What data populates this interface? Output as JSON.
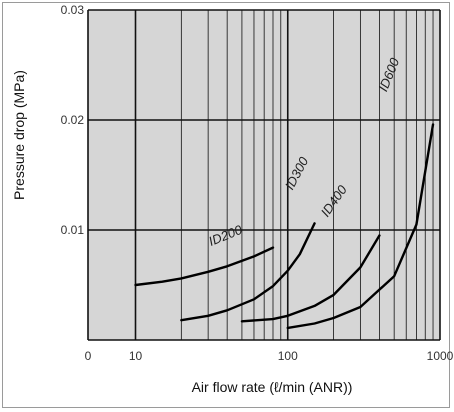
{
  "chart_data": {
    "type": "line",
    "title": "",
    "xlabel": "Air flow rate (ℓ/min (ANR))",
    "ylabel": "Pressure drop (MPa)",
    "x_scale": "log",
    "xlim": [
      10,
      1000
    ],
    "ylim": [
      0,
      0.03
    ],
    "x_ticks": [
      {
        "value": 10,
        "label": "10"
      },
      {
        "value": 100,
        "label": "100"
      },
      {
        "value": 1000,
        "label": "1000"
      }
    ],
    "x_origin_label": "0",
    "y_ticks": [
      {
        "value": 0.01,
        "label": "0.01"
      },
      {
        "value": 0.02,
        "label": "0.02"
      },
      {
        "value": 0.03,
        "label": "0.03"
      }
    ],
    "grid": true,
    "legend": "none",
    "colors": {
      "background": "#d6d6d6",
      "grid": "#111111",
      "line": "#000000"
    },
    "series": [
      {
        "name": "ID200",
        "x": [
          10,
          15,
          20,
          30,
          40,
          60,
          80
        ],
        "y": [
          0.005,
          0.0053,
          0.0056,
          0.0062,
          0.0067,
          0.0076,
          0.0084
        ]
      },
      {
        "name": "ID300",
        "x": [
          20,
          30,
          40,
          60,
          80,
          100,
          120,
          150
        ],
        "y": [
          0.0018,
          0.0022,
          0.0027,
          0.0037,
          0.0049,
          0.0063,
          0.0078,
          0.0106
        ]
      },
      {
        "name": "ID400",
        "x": [
          50,
          80,
          100,
          150,
          200,
          300,
          400
        ],
        "y": [
          0.0017,
          0.0019,
          0.0022,
          0.0031,
          0.0041,
          0.0066,
          0.0095
        ]
      },
      {
        "name": "ID600",
        "x": [
          100,
          150,
          200,
          300,
          500,
          700,
          900
        ],
        "y": [
          0.0011,
          0.0015,
          0.002,
          0.003,
          0.0058,
          0.0105,
          0.0196
        ]
      }
    ]
  }
}
